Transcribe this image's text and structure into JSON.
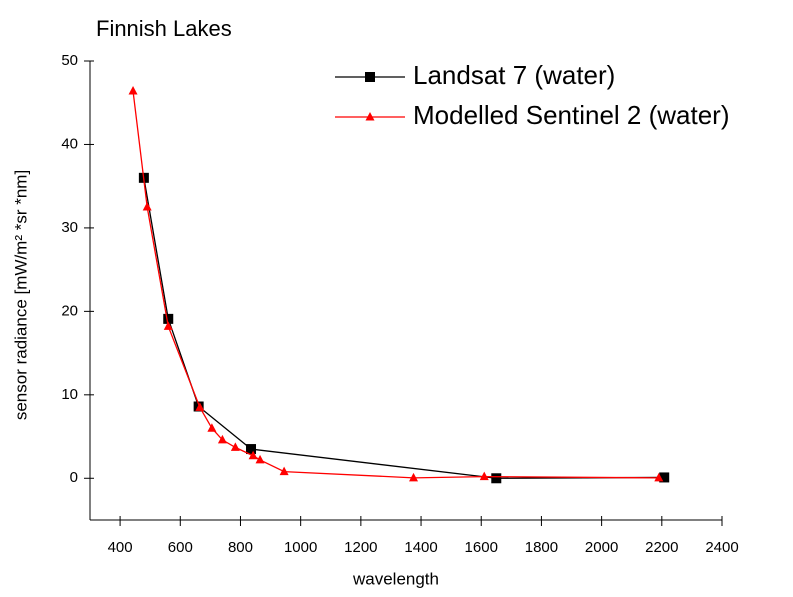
{
  "chart_data": {
    "type": "line",
    "title": "Finnish Lakes",
    "x_label": "wavelength",
    "y_label": "sensor radiance [mW/m² *sr *nm]",
    "xlim": [
      300,
      2400
    ],
    "xticks": [
      400,
      600,
      800,
      1000,
      1200,
      1400,
      1600,
      1800,
      2000,
      2200,
      2400
    ],
    "ylim": [
      -5,
      50
    ],
    "yticks": [
      0,
      10,
      20,
      30,
      40,
      50
    ],
    "legend": "upper right",
    "series": [
      {
        "name": "Landsat 7 (water)",
        "color": "#000000",
        "marker": "square",
        "x": [
          479,
          560,
          661,
          835,
          1650,
          2208
        ],
        "values": [
          36,
          19.1,
          8.6,
          3.5,
          0,
          0.1
        ]
      },
      {
        "name": "Modelled Sentinel 2 (water)",
        "color": "#ff0000",
        "marker": "triangle",
        "x": [
          443,
          490,
          560,
          665,
          705,
          740,
          783,
          842,
          865,
          945,
          1375,
          1610,
          2190
        ],
        "values": [
          46.4,
          32.5,
          18.2,
          8.5,
          6.0,
          4.6,
          3.7,
          2.7,
          2.2,
          0.8,
          0.05,
          0.2,
          0.05
        ]
      }
    ]
  }
}
